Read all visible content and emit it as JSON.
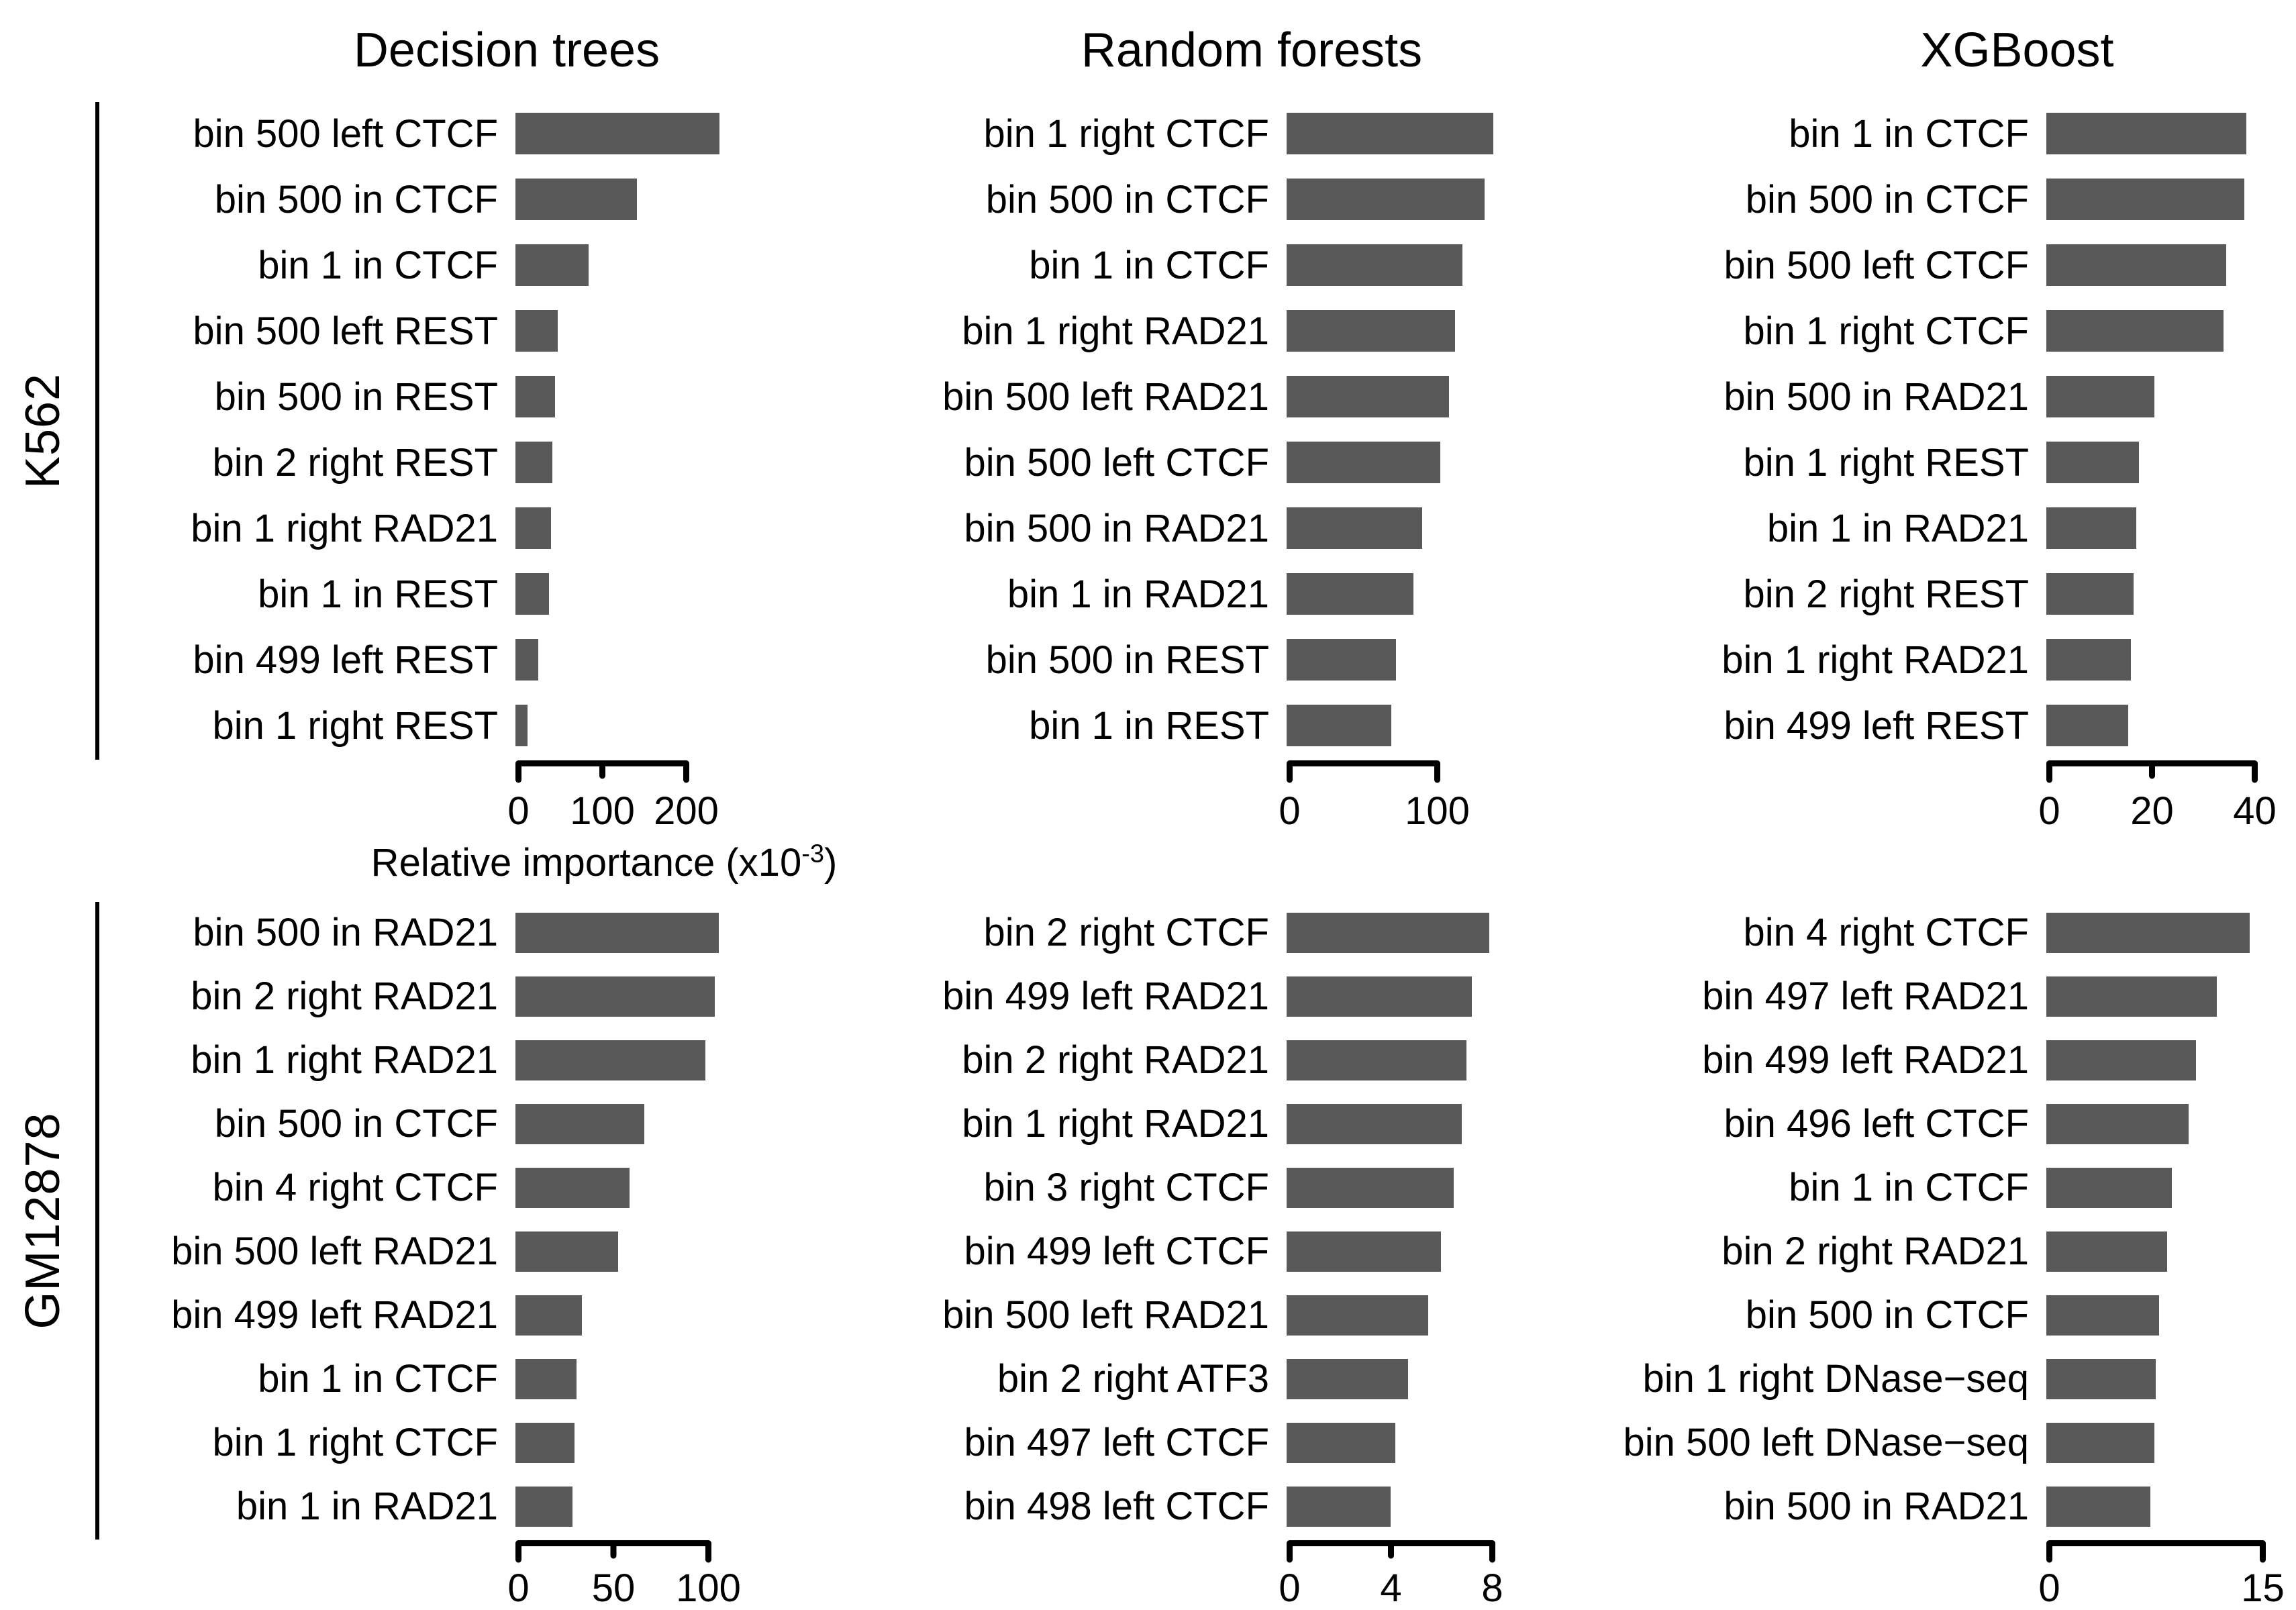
{
  "figure": {
    "column_titles": [
      "Decision trees",
      "Random forests",
      "XGBoost"
    ],
    "row_groups": [
      "K562",
      "GM12878"
    ],
    "x_axis_title": {
      "main": "Relative importance ",
      "prefix": "(x10",
      "exponent": "-3",
      "close": ")"
    },
    "bar_color": "#595959",
    "text_color": "#000000",
    "background": "#ffffff"
  },
  "chart_data": [
    {
      "type": "bar",
      "orientation": "horizontal",
      "cell_line": "K562",
      "model": "Decision trees",
      "xlabel": "Relative importance (x10^-3)",
      "xticks": [
        0,
        100,
        200
      ],
      "xlim": [
        0,
        245
      ],
      "grid": false,
      "categories": [
        "bin 500 left CTCF",
        "bin 500 in CTCF",
        "bin 1 in CTCF",
        "bin 500 left REST",
        "bin 500 in REST",
        "bin 2 right REST",
        "bin 1 right RAD21",
        "bin 1 in REST",
        "bin 499 left REST",
        "bin 1 right REST"
      ],
      "values": [
        243,
        145,
        87,
        50,
        47,
        44,
        42,
        40,
        27,
        14
      ]
    },
    {
      "type": "bar",
      "orientation": "horizontal",
      "cell_line": "K562",
      "model": "Random forests",
      "xlabel": "Relative importance (x10^-3)",
      "xticks": [
        0,
        100
      ],
      "xlim": [
        0,
        145
      ],
      "grid": false,
      "categories": [
        "bin 1 right CTCF",
        "bin 500 in CTCF",
        "bin 1 in CTCF",
        "bin 1 right RAD21",
        "bin 500 left RAD21",
        "bin 500 left CTCF",
        "bin 500 in RAD21",
        "bin 1 in RAD21",
        "bin 500 in REST",
        "bin 1 in REST"
      ],
      "values": [
        140,
        134,
        119,
        114,
        110,
        104,
        92,
        86,
        74,
        71
      ]
    },
    {
      "type": "bar",
      "orientation": "horizontal",
      "cell_line": "K562",
      "model": "XGBoost",
      "xlabel": "Relative importance (x10^-3)",
      "xticks": [
        0,
        20,
        40
      ],
      "xlim": [
        0,
        40
      ],
      "grid": false,
      "categories": [
        "bin 1 in CTCF",
        "bin 500 in CTCF",
        "bin 500 left CTCF",
        "bin 1 right CTCF",
        "bin 500 in RAD21",
        "bin 1 right REST",
        "bin 1 in RAD21",
        "bin 2 right REST",
        "bin 1 right RAD21",
        "bin 499 left REST"
      ],
      "values": [
        39,
        38.5,
        35,
        34.5,
        21,
        18,
        17.5,
        17,
        16.5,
        16
      ]
    },
    {
      "type": "bar",
      "orientation": "horizontal",
      "cell_line": "GM12878",
      "model": "Decision trees",
      "xlabel": "Relative importance (x10^-3)",
      "xticks": [
        0,
        50,
        100
      ],
      "xlim": [
        0,
        110
      ],
      "grid": false,
      "categories": [
        "bin 500 in RAD21",
        "bin 2 right RAD21",
        "bin 1 right RAD21",
        "bin 500 in CTCF",
        "bin 4 right CTCF",
        "bin 500 left RAD21",
        "bin 499 left RAD21",
        "bin 1 in CTCF",
        "bin 1 right CTCF",
        "bin 1 in RAD21"
      ],
      "values": [
        107,
        105,
        100,
        68,
        60,
        54,
        35,
        32,
        31,
        30
      ]
    },
    {
      "type": "bar",
      "orientation": "horizontal",
      "cell_line": "GM12878",
      "model": "Random forests",
      "xlabel": "Relative importance (x10^-3)",
      "xticks": [
        0,
        4,
        8
      ],
      "xlim": [
        0,
        8
      ],
      "grid": false,
      "categories": [
        "bin 2 right CTCF",
        "bin 499 left RAD21",
        "bin 2 right RAD21",
        "bin 1 right RAD21",
        "bin 3 right CTCF",
        "bin 499 left CTCF",
        "bin 500 left RAD21",
        "bin 2 right ATF3",
        "bin 497 left CTCF",
        "bin 498 left CTCF"
      ],
      "values": [
        8.0,
        7.3,
        7.1,
        6.9,
        6.6,
        6.1,
        5.6,
        4.8,
        4.3,
        4.1
      ]
    },
    {
      "type": "bar",
      "orientation": "horizontal",
      "cell_line": "GM12878",
      "model": "XGBoost",
      "xlabel": "Relative importance (x10^-3)",
      "xticks": [
        0,
        15
      ],
      "xlim": [
        0,
        15
      ],
      "grid": false,
      "categories": [
        "bin 4 right CTCF",
        "bin 497 left RAD21",
        "bin 499 left RAD21",
        "bin 496 left CTCF",
        "bin 1 in CTCF",
        "bin 2 right RAD21",
        "bin 500 in CTCF",
        "bin 1 right DNase−seq",
        "bin 500 left DNase−seq",
        "bin 500 in RAD21"
      ],
      "values": [
        14.3,
        12.0,
        10.5,
        10.0,
        8.8,
        8.5,
        7.9,
        7.7,
        7.6,
        7.3
      ]
    }
  ]
}
